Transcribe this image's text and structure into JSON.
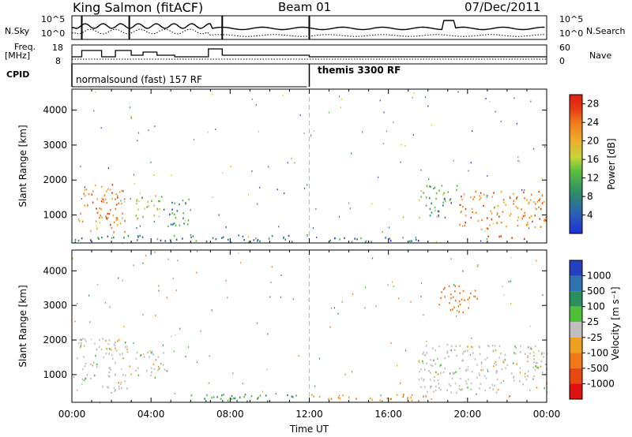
{
  "header": {
    "station": "King Salmon (fitACF)",
    "beam": "Beam 01",
    "date": "07/Dec/2011"
  },
  "side_labels": {
    "nsky": "N.Sky",
    "nsky_scale": [
      "10^5",
      "10^0"
    ],
    "nsearch": "N.Search",
    "freq": "Freq.",
    "freq_unit": "[MHz]",
    "freq_ticks": [
      "18",
      "8"
    ],
    "nave": "Nave",
    "nave_ticks": [
      "60",
      "0"
    ],
    "cpid": "CPID"
  },
  "cpid_segments": [
    {
      "label": "normalsound (fast) 157 RF"
    },
    {
      "label": "themis 3300 RF"
    }
  ],
  "x_axis": {
    "label": "Time UT",
    "ticks": [
      "00:00",
      "04:00",
      "08:00",
      "12:00",
      "16:00",
      "20:00",
      "00:00"
    ]
  },
  "colors": {
    "power_scale": [
      "#1f2fd6",
      "#2a5fb8",
      "#2e8f64",
      "#5bbf3c",
      "#c8d43a",
      "#f0a82a",
      "#f07a1a",
      "#e63a12",
      "#e01e12"
    ],
    "velocity_scale": [
      "#2340c0",
      "#2f73b0",
      "#2a8f5c",
      "#4fbf3a",
      "#bfbfbf",
      "#f0a020",
      "#f07818",
      "#e84812",
      "#e01010"
    ]
  },
  "chart_data": [
    {
      "type": "heatmap",
      "title": "Power",
      "xlabel": "Time UT",
      "ylabel": "Slant Range [km]",
      "xlim": [
        "00:00",
        "24:00"
      ],
      "ylim": [
        200,
        4600
      ],
      "y_ticks": [
        1000,
        2000,
        3000,
        4000
      ],
      "colorbar": {
        "label": "Power [dB]",
        "ticks": [
          4,
          8,
          12,
          16,
          20,
          24,
          28
        ],
        "range": [
          0,
          30
        ]
      },
      "regions": [
        {
          "t_start": 0.3,
          "t_end": 2.7,
          "range_min": 500,
          "range_max": 1900,
          "level_db": 22
        },
        {
          "t_start": 3.2,
          "t_end": 4.6,
          "range_min": 900,
          "range_max": 1700,
          "level_db": 14
        },
        {
          "t_start": 4.6,
          "t_end": 6.0,
          "range_min": 700,
          "range_max": 1500,
          "level_db": 8
        },
        {
          "t_start": 0.0,
          "t_end": 12.0,
          "range_min": 250,
          "range_max": 450,
          "level_db": 6
        },
        {
          "t_start": 12.0,
          "t_end": 18.0,
          "range_min": 250,
          "range_max": 400,
          "level_db": 6
        },
        {
          "t_start": 17.5,
          "t_end": 19.5,
          "range_min": 900,
          "range_max": 1900,
          "level_db": 10
        },
        {
          "t_start": 19.5,
          "t_end": 24.0,
          "range_min": 600,
          "range_max": 1700,
          "level_db": 22
        },
        {
          "t_start": 21.0,
          "t_end": 23.0,
          "range_min": 300,
          "range_max": 450,
          "level_db": 28
        }
      ]
    },
    {
      "type": "heatmap",
      "title": "Velocity",
      "xlabel": "Time UT",
      "ylabel": "Slant Range [km]",
      "xlim": [
        "00:00",
        "24:00"
      ],
      "ylim": [
        200,
        4600
      ],
      "y_ticks": [
        1000,
        2000,
        3000,
        4000
      ],
      "colorbar": {
        "label": "Velocity [m s⁻¹]",
        "ticks": [
          "1000",
          "500",
          "100",
          "25",
          "-25",
          "-100",
          "-500",
          "-1000"
        ]
      },
      "regions": [
        {
          "t_start": 0.2,
          "t_end": 2.8,
          "range_min": 500,
          "range_max": 2100,
          "velocity": 0
        },
        {
          "t_start": 3.2,
          "t_end": 4.8,
          "range_min": 900,
          "range_max": 1700,
          "velocity": 0
        },
        {
          "t_start": 6.0,
          "t_end": 12.0,
          "range_min": 250,
          "range_max": 450,
          "velocity": 100
        },
        {
          "t_start": 12.0,
          "t_end": 18.0,
          "range_min": 250,
          "range_max": 450,
          "velocity": -100
        },
        {
          "t_start": 17.5,
          "t_end": 24.0,
          "range_min": 500,
          "range_max": 1900,
          "velocity": 0
        },
        {
          "t_start": 18.5,
          "t_end": 20.5,
          "range_min": 2800,
          "range_max": 3600,
          "velocity": -200
        }
      ]
    }
  ]
}
